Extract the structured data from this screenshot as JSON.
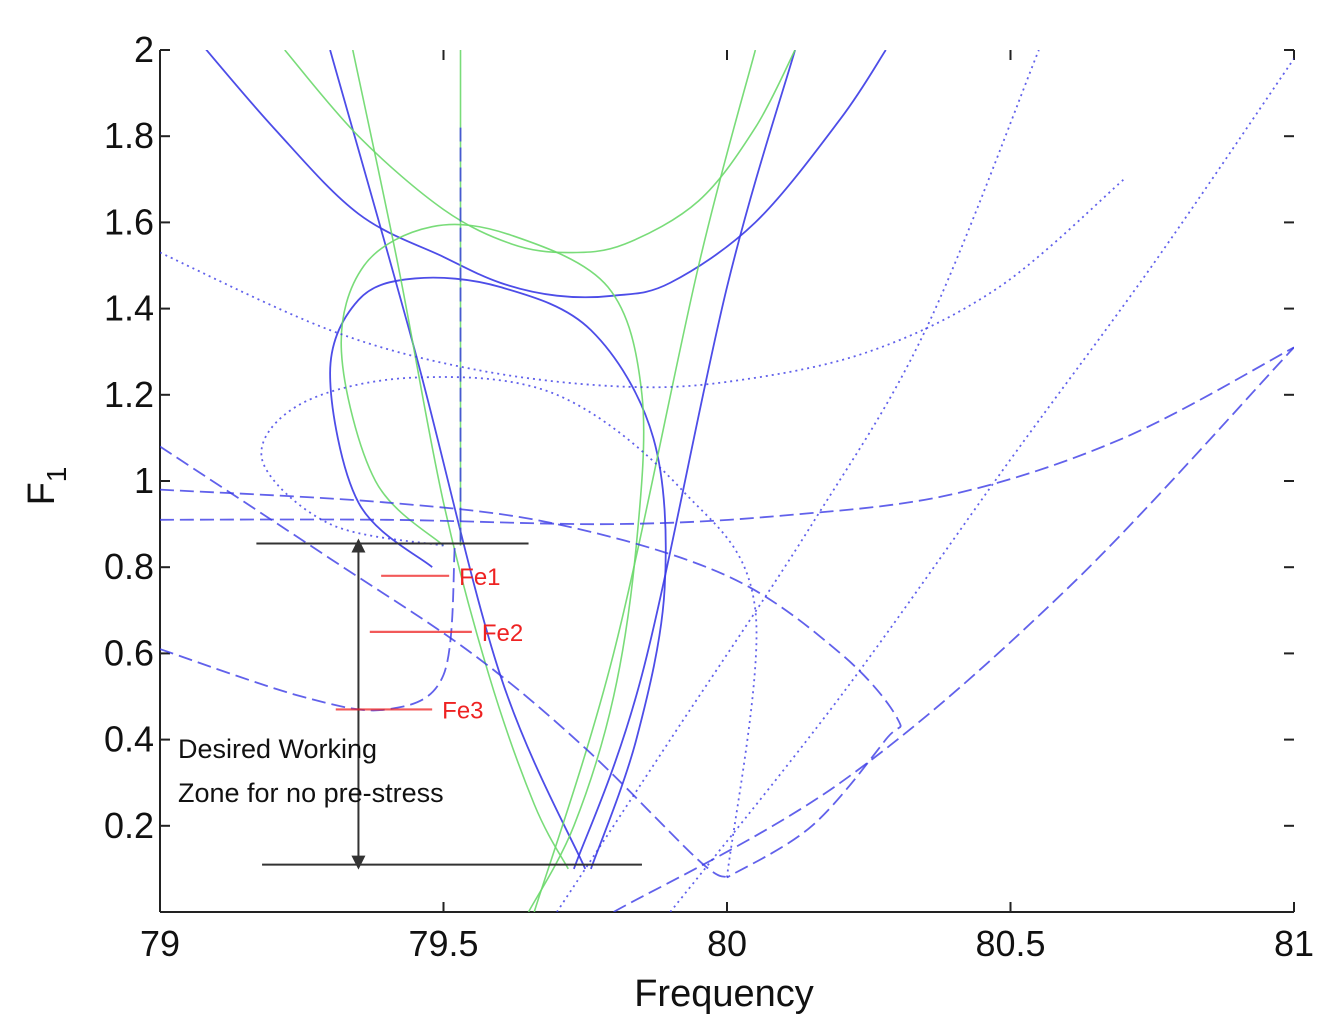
{
  "chart_data": {
    "type": "line",
    "title": "",
    "xlabel": "Frequency",
    "ylabel": "F",
    "ylabel_subscript": "1",
    "xlim": [
      79,
      81
    ],
    "ylim": [
      0,
      2
    ],
    "grid": false,
    "x_ticks": [
      79,
      79.5,
      80,
      80.5,
      81
    ],
    "x_tick_labels": [
      "79",
      "79.5",
      "80",
      "80.5",
      "81"
    ],
    "y_ticks": [
      0.2,
      0.4,
      0.6,
      0.8,
      1,
      1.2,
      1.4,
      1.6,
      1.8,
      2
    ],
    "y_tick_labels": [
      "0.2",
      "0.4",
      "0.6",
      "0.8",
      "1",
      "1.2",
      "1.4",
      "1.6",
      "1.8",
      "2"
    ],
    "colors": {
      "blue": "#3a3ae6",
      "green": "#6ad86a",
      "red": "#ee2222",
      "black": "#333333"
    },
    "series": [
      {
        "name": "blue-solid-u",
        "color": "#3a3ae6",
        "style": "solid",
        "x": [
          79.05,
          79.2,
          79.35,
          79.5,
          79.6,
          79.7,
          79.8,
          79.9,
          80.05,
          80.2,
          80.28
        ],
        "y": [
          2.05,
          1.82,
          1.62,
          1.52,
          1.46,
          1.43,
          1.43,
          1.46,
          1.6,
          1.84,
          2.0
        ]
      },
      {
        "name": "blue-solid-line-a",
        "color": "#3a3ae6",
        "style": "solid",
        "x": [
          79.3,
          79.45,
          79.6,
          79.75
        ],
        "y": [
          2.0,
          1.3,
          0.55,
          0.1
        ]
      },
      {
        "name": "blue-solid-line-b",
        "color": "#3a3ae6",
        "style": "solid",
        "x": [
          79.73,
          79.85,
          80.0,
          80.12
        ],
        "y": [
          0.1,
          0.55,
          1.45,
          2.0
        ]
      },
      {
        "name": "blue-solid-loop",
        "color": "#3a3ae6",
        "style": "solid",
        "x": [
          79.48,
          79.35,
          79.3,
          79.35,
          79.45,
          79.6,
          79.76,
          79.87,
          79.89,
          79.84,
          79.76
        ],
        "y": [
          0.8,
          0.95,
          1.25,
          1.42,
          1.47,
          1.45,
          1.35,
          1.1,
          0.75,
          0.4,
          0.1
        ]
      },
      {
        "name": "green-u",
        "color": "#6ad86a",
        "style": "solid",
        "x": [
          79.22,
          79.35,
          79.5,
          79.62,
          79.72,
          79.82,
          79.95,
          80.05,
          80.12
        ],
        "y": [
          2.0,
          1.8,
          1.63,
          1.55,
          1.53,
          1.55,
          1.65,
          1.82,
          2.0
        ]
      },
      {
        "name": "green-vertical",
        "color": "#6ad86a",
        "style": "solid",
        "x": [
          79.53,
          79.53
        ],
        "y": [
          2.0,
          0.85
        ]
      },
      {
        "name": "green-narrow",
        "color": "#6ad86a",
        "style": "solid",
        "x": [
          79.34,
          79.42,
          79.5,
          79.58,
          79.66,
          79.72
        ],
        "y": [
          2.0,
          1.5,
          0.95,
          0.55,
          0.25,
          0.1
        ]
      },
      {
        "name": "green-loop",
        "color": "#6ad86a",
        "style": "solid",
        "x": [
          79.5,
          79.38,
          79.32,
          79.36,
          79.48,
          79.62,
          79.79,
          79.85,
          79.84,
          79.8,
          79.73,
          79.65
        ],
        "y": [
          0.85,
          1.0,
          1.3,
          1.5,
          1.59,
          1.57,
          1.45,
          1.2,
          0.85,
          0.5,
          0.2,
          0.0
        ]
      },
      {
        "name": "green-right",
        "color": "#6ad86a",
        "style": "solid",
        "x": [
          79.66,
          79.8,
          79.95,
          80.05
        ],
        "y": [
          0.0,
          0.6,
          1.5,
          2.0
        ]
      },
      {
        "name": "blue-dashed-vertical",
        "color": "#3a3ae6",
        "style": "dashed",
        "x": [
          79.53,
          79.53
        ],
        "y": [
          1.82,
          0.85
        ]
      },
      {
        "name": "blue-dotted-curve-a",
        "color": "#3a3ae6",
        "style": "dotted",
        "x": [
          79.0,
          79.3,
          79.55,
          79.8,
          80.0,
          80.25,
          80.48,
          80.7
        ],
        "y": [
          1.53,
          1.35,
          1.26,
          1.22,
          1.23,
          1.3,
          1.45,
          1.7
        ]
      },
      {
        "name": "blue-dotted-loop",
        "color": "#3a3ae6",
        "style": "dotted",
        "x": [
          79.5,
          79.3,
          79.18,
          79.25,
          79.45,
          79.7,
          79.92,
          80.05,
          80.0
        ],
        "y": [
          0.85,
          0.9,
          1.05,
          1.18,
          1.24,
          1.2,
          0.98,
          0.7,
          0.08
        ]
      },
      {
        "name": "blue-dotted-steep",
        "color": "#3a3ae6",
        "style": "dotted",
        "x": [
          79.7,
          79.9,
          80.15,
          80.35,
          80.55
        ],
        "y": [
          0.0,
          0.4,
          0.9,
          1.35,
          2.0
        ]
      },
      {
        "name": "blue-dotted-right",
        "color": "#3a3ae6",
        "style": "dotted",
        "x": [
          79.9,
          80.2,
          80.5,
          80.75,
          81.0
        ],
        "y": [
          0.0,
          0.5,
          1.05,
          1.5,
          1.98
        ]
      },
      {
        "name": "blue-dashed-flat",
        "color": "#3a3ae6",
        "style": "dashed",
        "x": [
          79.0,
          79.4,
          79.8,
          80.1,
          80.4,
          80.7,
          81.0
        ],
        "y": [
          0.91,
          0.91,
          0.9,
          0.92,
          0.97,
          1.1,
          1.31
        ]
      },
      {
        "name": "blue-dashed-diag-down",
        "color": "#3a3ae6",
        "style": "dashed",
        "x": [
          79.0,
          79.4,
          79.7,
          80.0,
          80.2,
          80.3,
          80.28,
          80.15,
          80.0
        ],
        "y": [
          0.98,
          0.95,
          0.9,
          0.78,
          0.6,
          0.45,
          0.4,
          0.2,
          0.08
        ]
      },
      {
        "name": "blue-dashed-cross",
        "color": "#3a3ae6",
        "style": "dashed",
        "x": [
          79.0,
          79.3,
          79.55,
          79.75,
          79.95,
          80.0
        ],
        "y": [
          1.08,
          0.82,
          0.6,
          0.38,
          0.12,
          0.08
        ]
      },
      {
        "name": "blue-dashed-lower",
        "color": "#3a3ae6",
        "style": "dashed",
        "x": [
          79.0,
          79.25,
          79.4,
          79.5,
          79.52
        ],
        "y": [
          0.61,
          0.5,
          0.47,
          0.55,
          0.85
        ]
      },
      {
        "name": "blue-dashed-return",
        "color": "#3a3ae6",
        "style": "dashed",
        "x": [
          79.8,
          80.2,
          80.6,
          81.0
        ],
        "y": [
          0.0,
          0.3,
          0.75,
          1.31
        ]
      }
    ],
    "markers": [
      {
        "label": "Fe1",
        "x_start": 79.39,
        "x_end": 79.51,
        "y": 0.78,
        "color": "#ee2222"
      },
      {
        "label": "Fe2",
        "x_start": 79.37,
        "x_end": 79.55,
        "y": 0.65,
        "color": "#ee2222"
      },
      {
        "label": "Fe3",
        "x_start": 79.31,
        "x_end": 79.48,
        "y": 0.47,
        "color": "#ee2222"
      }
    ],
    "working_zone": {
      "upper_line": {
        "x_start": 79.17,
        "x_end": 79.65,
        "y": 0.855
      },
      "lower_line": {
        "x_start": 79.18,
        "x_end": 79.85,
        "y": 0.11
      },
      "arrow_x": 79.35,
      "annotation_lines": [
        "Desired Working",
        "Zone for no pre-stress"
      ]
    }
  }
}
